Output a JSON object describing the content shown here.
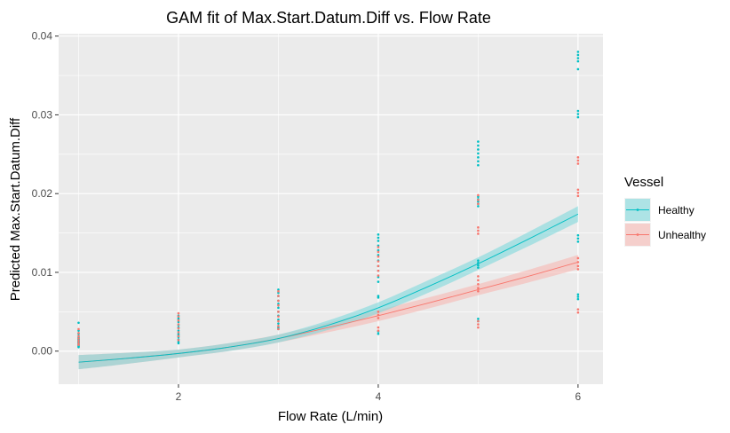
{
  "chart_data": {
    "type": "line",
    "title": "GAM fit of Max.Start.Datum.Diff vs. Flow Rate",
    "xlabel": "Flow Rate (L/min)",
    "ylabel": "Predicted Max.Start.Datum.Diff",
    "xlim": [
      0.8,
      6.25
    ],
    "ylim": [
      -0.0042,
      0.0403
    ],
    "x_ticks": [
      2,
      4,
      6
    ],
    "x_tick_labels": [
      "2",
      "4",
      "6"
    ],
    "y_ticks": [
      0.0,
      0.01,
      0.02,
      0.03,
      0.04
    ],
    "y_tick_labels": [
      "0.00",
      "0.01",
      "0.02",
      "0.03",
      "0.04"
    ],
    "grid": true,
    "legend": {
      "title": "Vessel",
      "position": "right"
    },
    "series": [
      {
        "name": "Healthy",
        "color": "#00BFC4",
        "fit": {
          "x": [
            1.0,
            1.5,
            2.0,
            2.5,
            3.0,
            3.5,
            4.0,
            4.5,
            5.0,
            5.5,
            6.0
          ],
          "y": [
            -0.0014,
            -0.0009,
            -0.0003,
            0.0005,
            0.0016,
            0.0033,
            0.0055,
            0.0082,
            0.0111,
            0.0142,
            0.0174
          ],
          "band": [
            0.0009,
            0.0007,
            0.0005,
            0.0005,
            0.0005,
            0.0006,
            0.0007,
            0.0008,
            0.0008,
            0.0009,
            0.001
          ]
        },
        "points": [
          {
            "x": 1,
            "y": [
              0.0036,
              0.0026,
              0.0022,
              0.0019,
              0.0017,
              0.0016,
              0.0015,
              0.0014,
              0.0013,
              0.0012,
              0.0011,
              0.001,
              0.0009,
              0.0008,
              0.0007,
              0.0006,
              0.0005
            ]
          },
          {
            "x": 2,
            "y": [
              0.0045,
              0.0042,
              0.004,
              0.0037,
              0.0033,
              0.003,
              0.0026,
              0.0022,
              0.002,
              0.0018,
              0.0015,
              0.0012,
              0.001
            ]
          },
          {
            "x": 3,
            "y": [
              0.0078,
              0.0074,
              0.007,
              0.0064,
              0.006,
              0.0055,
              0.005,
              0.0045,
              0.004,
              0.0035,
              0.003,
              0.0028
            ]
          },
          {
            "x": 4,
            "y": [
              0.0148,
              0.0144,
              0.014,
              0.0134,
              0.0128,
              0.0122,
              0.0115,
              0.0108,
              0.0102,
              0.0094,
              0.0088,
              0.007,
              0.0068,
              0.0025,
              0.0022
            ]
          },
          {
            "x": 5,
            "y": [
              0.0266,
              0.0261,
              0.0256,
              0.0251,
              0.0246,
              0.0241,
              0.0236,
              0.0196,
              0.0193,
              0.019,
              0.0187,
              0.0184,
              0.0115,
              0.0112,
              0.0109,
              0.0106,
              0.0041,
              0.0038
            ]
          },
          {
            "x": 6,
            "y": [
              0.038,
              0.0376,
              0.0372,
              0.0368,
              0.0358,
              0.0305,
              0.0301,
              0.0297,
              0.0147,
              0.0143,
              0.0139,
              0.0072,
              0.0069,
              0.0066
            ]
          }
        ]
      },
      {
        "name": "Unhealthy",
        "color": "#F8766D",
        "fit": {
          "x": [
            1.0,
            1.5,
            2.0,
            2.5,
            3.0,
            3.5,
            4.0,
            4.5,
            5.0,
            5.5,
            6.0
          ],
          "y": [
            -0.0014,
            -0.0009,
            -0.0003,
            0.0005,
            0.0016,
            0.003,
            0.0045,
            0.0061,
            0.0078,
            0.0095,
            0.0113
          ],
          "band": [
            0.0009,
            0.0007,
            0.0005,
            0.0005,
            0.0005,
            0.0006,
            0.0007,
            0.0007,
            0.0007,
            0.0008,
            0.0009
          ]
        },
        "points": [
          {
            "x": 1,
            "y": [
              0.0028,
              0.0023,
              0.0019,
              0.0016,
              0.0013,
              0.001,
              0.0008
            ]
          },
          {
            "x": 2,
            "y": [
              0.0048,
              0.0044,
              0.0039,
              0.0034,
              0.0029,
              0.0024,
              0.0019,
              0.0014
            ]
          },
          {
            "x": 3,
            "y": [
              0.0076,
              0.007,
              0.0064,
              0.0058,
              0.005,
              0.0044,
              0.0038,
              0.0032,
              0.0028
            ]
          },
          {
            "x": 4,
            "y": [
              0.0132,
              0.0126,
              0.012,
              0.0114,
              0.0108,
              0.0102,
              0.0096,
              0.005,
              0.0046,
              0.0042,
              0.003,
              0.0026
            ]
          },
          {
            "x": 5,
            "y": [
              0.0198,
              0.0192,
              0.0187,
              0.0157,
              0.0153,
              0.0149,
              0.0095,
              0.009,
              0.0085,
              0.008,
              0.0076,
              0.0038,
              0.0034,
              0.003
            ]
          },
          {
            "x": 6,
            "y": [
              0.0246,
              0.0242,
              0.0238,
              0.0205,
              0.0201,
              0.0197,
              0.0118,
              0.0113,
              0.0108,
              0.0104,
              0.0053,
              0.0049
            ]
          }
        ]
      }
    ]
  }
}
